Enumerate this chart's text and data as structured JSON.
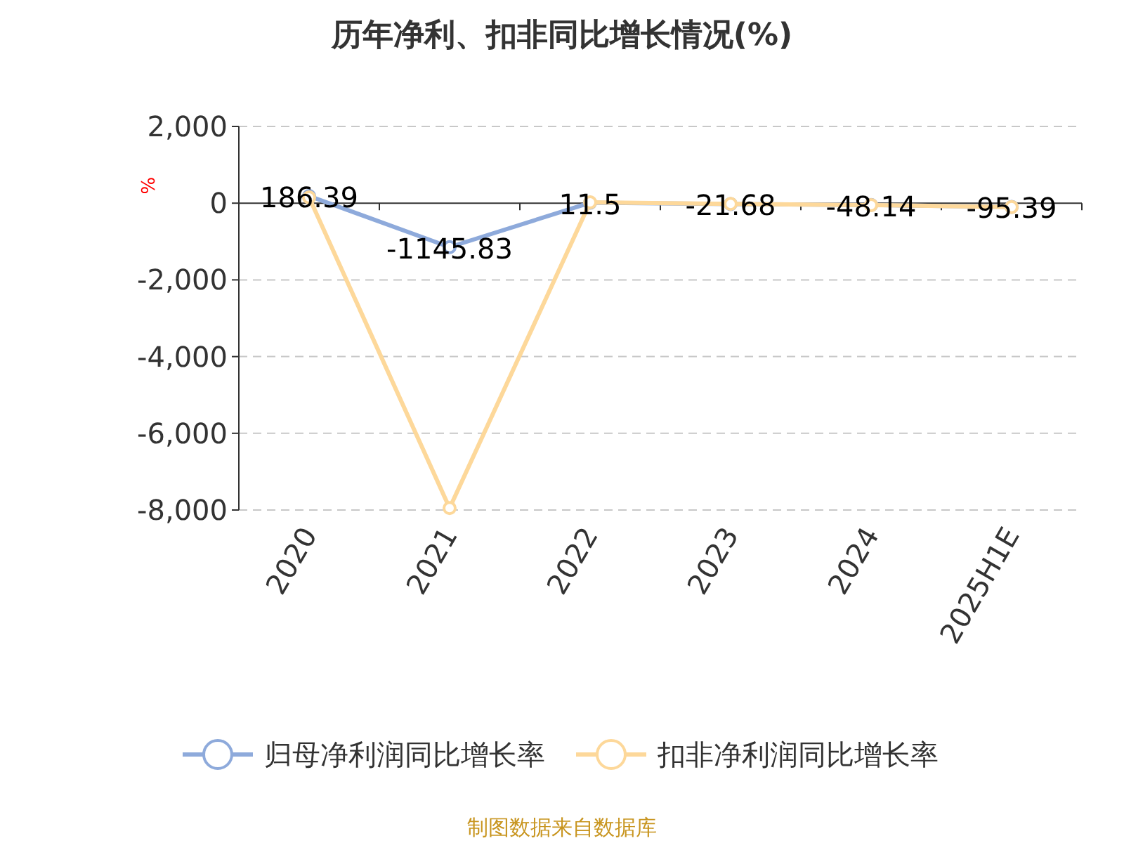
{
  "chart_data": {
    "type": "line",
    "title": "历年净利、扣非同比增长情况(%)",
    "ylabel": "%",
    "categories": [
      "2020",
      "2021",
      "2022",
      "2023",
      "2024",
      "2025H1E"
    ],
    "series": [
      {
        "name": "归母净利润同比增长率",
        "color": "#8eaadb",
        "values": [
          186.39,
          -1145.83,
          11.5,
          -21.68,
          -48.14,
          -95.39
        ],
        "value_labels": [
          "186.39",
          "-1145.83",
          "11.5",
          "-21.68",
          "-48.14",
          "-95.39"
        ]
      },
      {
        "name": "扣非净利润同比增长率",
        "color": "#fdd89a",
        "values": [
          150,
          -7950,
          20,
          -20,
          -50,
          -100
        ]
      }
    ],
    "ylim": [
      -8000,
      2000
    ],
    "yticks": [
      {
        "value": 2000,
        "label": "2,000"
      },
      0,
      {
        "value": -2000,
        "label": "-2,000"
      },
      {
        "value": -4000,
        "label": "-4,000"
      },
      {
        "value": -6000,
        "label": "-6,000"
      },
      {
        "value": -8000,
        "label": "-8,000"
      }
    ],
    "grid": "y",
    "legend": "bottom",
    "marker": "circle",
    "annotations": [
      "制图数据来自数据库"
    ]
  }
}
